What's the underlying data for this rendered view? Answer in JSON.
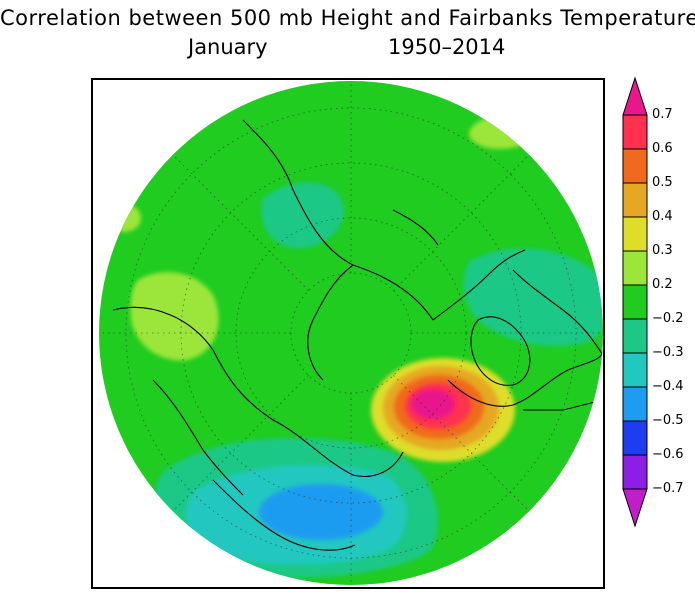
{
  "title": "Correlation between 500 mb Height and Fairbanks Temperature",
  "subtitle": {
    "month": "January",
    "years": "1950–2014"
  },
  "colors": {
    "background_field": "#1fcc1f",
    "continent_outline": "#000000",
    "gridline": "#1a1a1a"
  },
  "colorbar": {
    "labels": [
      "0.7",
      "0.6",
      "0.5",
      "0.4",
      "0.3",
      "0.2",
      "−0.2",
      "−0.3",
      "−0.4",
      "−0.5",
      "−0.6",
      "−0.7"
    ],
    "bins": [
      {
        "range": "> 0.7",
        "color": "#e8188c"
      },
      {
        "range": "0.6 to 0.7",
        "color": "#ff3050"
      },
      {
        "range": "0.5 to 0.6",
        "color": "#f06a1e"
      },
      {
        "range": "0.4 to 0.5",
        "color": "#e6a824"
      },
      {
        "range": "0.3 to 0.4",
        "color": "#dede2a"
      },
      {
        "range": "0.2 to 0.3",
        "color": "#9ce63a"
      },
      {
        "range": "-0.2 to 0.2",
        "color": "#1fcc1f"
      },
      {
        "range": "-0.3 to -0.2",
        "color": "#1dc886"
      },
      {
        "range": "-0.4 to -0.3",
        "color": "#22c8c0"
      },
      {
        "range": "-0.5 to -0.4",
        "color": "#1e9cf0"
      },
      {
        "range": "-0.6 to -0.5",
        "color": "#1e3cf0"
      },
      {
        "range": "-0.7 to -0.6",
        "color": "#8c1ee6"
      },
      {
        "range": "< -0.7",
        "color": "#c01ec8"
      }
    ]
  },
  "chart_data": {
    "type": "map",
    "projection": "north polar stereographic",
    "variable": "correlation coefficient",
    "features": [
      {
        "name": "strong-positive-center",
        "region": "western Canada / Gulf of Alaska coast",
        "peak_value": 0.75
      },
      {
        "name": "negative-center",
        "region": "North Atlantic south of Iceland",
        "peak_value": -0.45
      },
      {
        "name": "negative-region",
        "region": "eastern Canada / Hudson Bay",
        "peak_value": -0.3
      },
      {
        "name": "negative-region",
        "region": "Barents Sea / northern Scandinavia",
        "peak_value": -0.25
      },
      {
        "name": "positive-region",
        "region": "central Siberia",
        "peak_value": 0.25
      },
      {
        "name": "positive-region",
        "region": "central Pacific",
        "peak_value": 0.25
      }
    ]
  }
}
